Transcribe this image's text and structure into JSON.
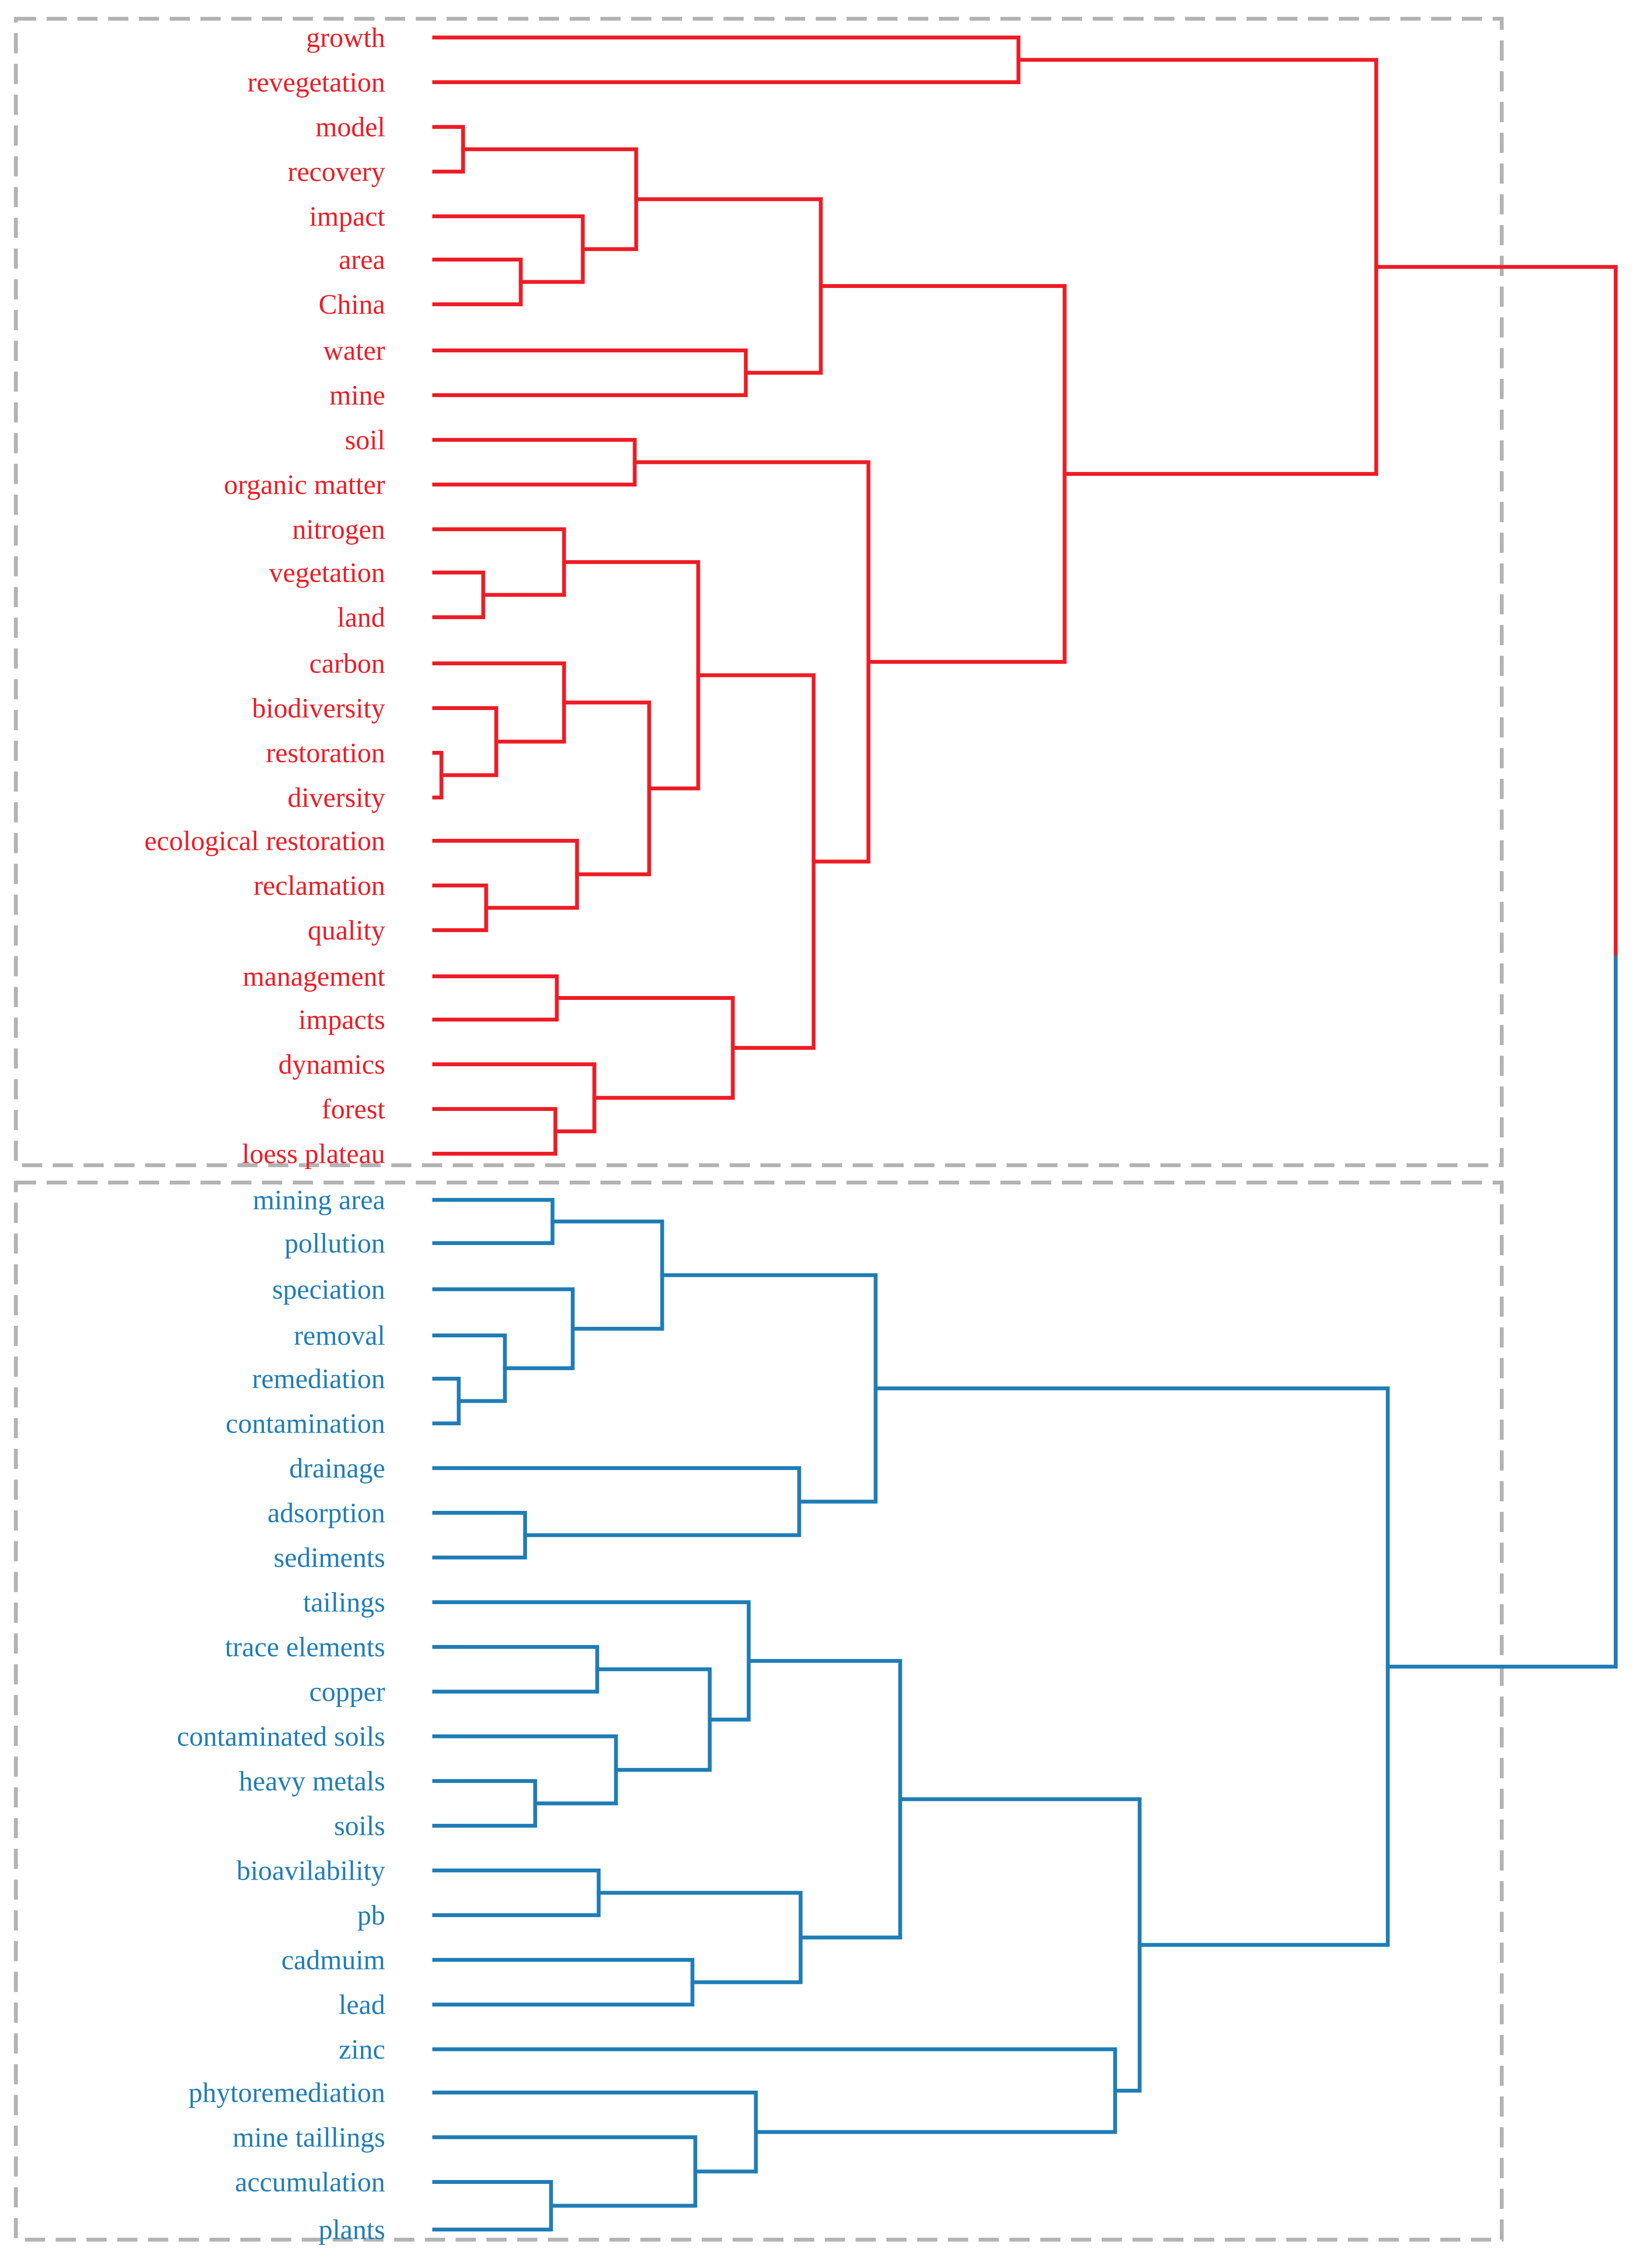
{
  "colors": {
    "red": "#ee1c25",
    "blue": "#1f7db6",
    "box": "#b3b3b3"
  },
  "groups": [
    {
      "name": "red-cluster",
      "color": "red",
      "labels": [
        "growth",
        "revegetation",
        "model",
        "recovery",
        "impact",
        "area",
        "China",
        "water",
        "mine",
        "soil",
        "organic matter",
        "nitrogen",
        "vegetation",
        "land",
        "carbon",
        "biodiversity",
        "restoration",
        "diversity",
        "ecological restoration",
        "reclamation",
        "quality",
        "management",
        "impacts",
        "dynamics",
        "forest",
        "loess plateau"
      ]
    },
    {
      "name": "blue-cluster",
      "color": "blue",
      "labels": [
        "mining area",
        "pollution",
        "speciation",
        "removal",
        "remediation",
        "contamination",
        "drainage",
        "adsorption",
        "sediments",
        "tailings",
        "trace elements",
        "copper",
        "contaminated soils",
        "heavy metals",
        "soils",
        "bioavilability",
        "pb",
        "cadmuim",
        "lead",
        "zinc",
        "phytoremediation",
        "mine taillings",
        "accumulation",
        "plants"
      ]
    }
  ]
}
